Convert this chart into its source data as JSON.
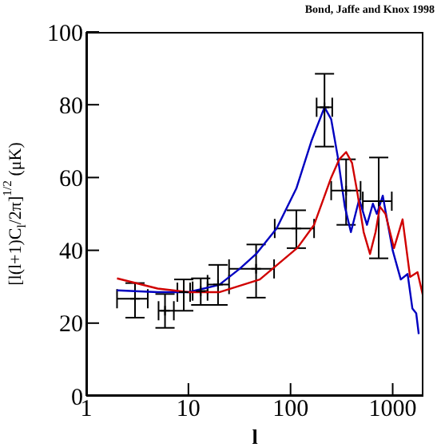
{
  "chart_data": {
    "type": "line",
    "xlabel": "l",
    "ylabel": "[l(l+1)C$_{l}$/2π]$^{1/2}$  (μK)",
    "annotations": [
      "Bond, Jaffe and Knox 1998"
    ],
    "log": "x",
    "xlim": [
      1,
      2000
    ],
    "xticks": [
      1,
      10,
      100,
      1000
    ],
    "ylim": [
      0,
      100
    ],
    "yticks": [
      0,
      20,
      40,
      60,
      80,
      100
    ],
    "marker": "none",
    "line_style": "solid",
    "series": [
      {
        "type": "scatter",
        "marker": "cross",
        "color": "#000000",
        "x": [
          3,
          5.9,
          9,
          13.2,
          19.5,
          46,
          114,
          215,
          350,
          730
        ],
        "values": [
          26.7,
          23.4,
          28.5,
          28.8,
          30.6,
          34.9,
          46,
          79.3,
          56.4,
          53.5
        ],
        "errors": [
          [
            21.5,
            31
          ],
          [
            18.7,
            28
          ],
          [
            23.4,
            32
          ],
          [
            25,
            32.3
          ],
          [
            25,
            36
          ],
          [
            27,
            41.6
          ],
          [
            40.6,
            51
          ],
          [
            68.5,
            88.5
          ],
          [
            47,
            65
          ],
          [
            37.8,
            65.5
          ]
        ],
        "xerrors": [
          [
            2,
            4
          ],
          [
            5.1,
            7.2
          ],
          [
            7.8,
            10.4
          ],
          [
            11,
            15.4
          ],
          [
            15.4,
            25
          ],
          [
            25,
            69
          ],
          [
            70,
            170
          ],
          [
            180,
            256
          ],
          [
            250,
            485
          ],
          [
            510,
            980
          ]
        ]
      },
      {
        "color": "#0000c0",
        "x": [
          2,
          5,
          10,
          20,
          32,
          46,
          73,
          114,
          160,
          215,
          250,
          290,
          340,
          390,
          470,
          560,
          640,
          700,
          800,
          900,
          1000,
          1200,
          1400,
          1560,
          1700,
          1800
        ],
        "values": [
          29,
          28.5,
          28.5,
          30.5,
          35,
          39,
          46,
          57,
          70,
          79.3,
          76,
          65.7,
          52,
          45,
          54,
          47,
          52.8,
          50,
          55,
          47,
          40,
          32,
          33.5,
          24,
          22.7,
          17
        ]
      },
      {
        "color": "#d00000",
        "x": [
          2,
          5,
          10,
          20,
          50,
          117,
          170,
          250,
          300,
          350,
          400,
          450,
          520,
          600,
          680,
          750,
          850,
          1030,
          1250,
          1480,
          1750,
          2000
        ],
        "values": [
          32.3,
          29.5,
          28.5,
          28.5,
          32,
          40.7,
          47,
          60,
          65,
          67,
          64,
          56,
          45,
          39,
          45,
          52,
          50,
          40.6,
          48.5,
          32.7,
          34,
          27
        ]
      }
    ]
  }
}
